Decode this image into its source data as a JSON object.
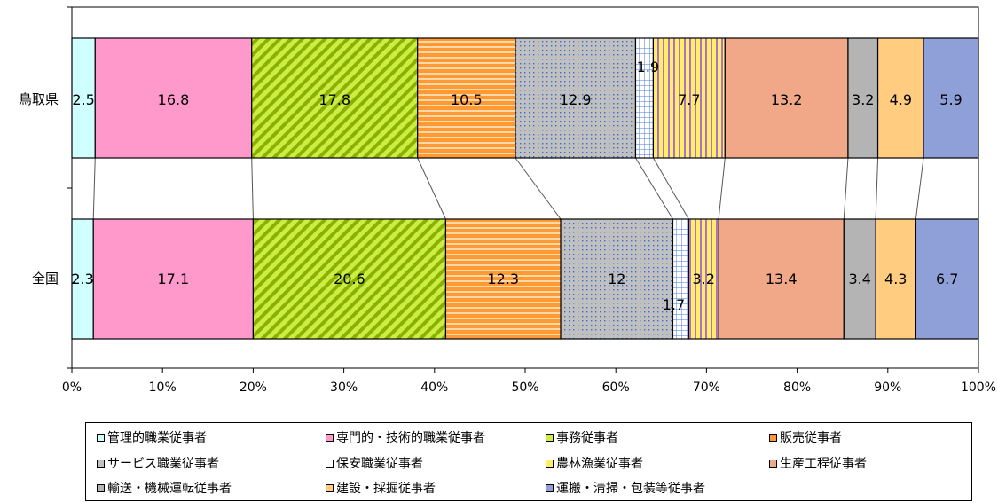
{
  "chart_data": {
    "type": "bar",
    "orientation": "horizontal",
    "stacked": "percent",
    "categories": [
      "鳥取県",
      "全国"
    ],
    "series": [
      {
        "name": "管理的職業従事者",
        "values": [
          2.5,
          2.3
        ],
        "color": "#cfffff",
        "pattern": "solid"
      },
      {
        "name": "専門的・技術的職業従事者",
        "values": [
          16.8,
          17.1
        ],
        "color": "#ff99cc",
        "pattern": "solid"
      },
      {
        "name": "事務従事者",
        "values": [
          17.8,
          20.6
        ],
        "color": "#ccee44",
        "pattern": "diagonal"
      },
      {
        "name": "販売従事者",
        "values": [
          10.5,
          12.3
        ],
        "color": "#ff9933",
        "pattern": "horizontal"
      },
      {
        "name": "サービス職業従事者",
        "values": [
          12.9,
          12
        ],
        "color": "#c0c0c0",
        "pattern": "dots"
      },
      {
        "name": "保安職業従事者",
        "values": [
          1.9,
          1.7
        ],
        "color": "#ffffff",
        "pattern": "grid"
      },
      {
        "name": "農林漁業従事者",
        "values": [
          7.7,
          3.2
        ],
        "color": "#ffee66",
        "pattern": "vertical"
      },
      {
        "name": "生産工程従事者",
        "values": [
          13.2,
          13.4
        ],
        "color": "#f0a888",
        "pattern": "solid"
      },
      {
        "name": "輸送・機械運転従事者",
        "values": [
          3.2,
          3.4
        ],
        "color": "#b4b4b4",
        "pattern": "solid"
      },
      {
        "name": "建設・採掘従事者",
        "values": [
          4.9,
          4.3
        ],
        "color": "#ffcc80",
        "pattern": "solid"
      },
      {
        "name": "運搬・清掃・包装等従事者",
        "values": [
          5.9,
          6.7
        ],
        "color": "#8fa0d8",
        "pattern": "solid"
      }
    ],
    "data_labels": [
      [
        "2.5",
        "16.8",
        "17.8",
        "10.5",
        "12.9",
        "1.9",
        "7.7",
        "13.2",
        "3.2",
        "4.9",
        "5.9"
      ],
      [
        "2.3",
        "17.1",
        "20.6",
        "12.3",
        "12",
        "1.7",
        "3.2",
        "13.4",
        "3.4",
        "4.3",
        "6.7"
      ]
    ],
    "x_ticks": [
      "0%",
      "10%",
      "20%",
      "30%",
      "40%",
      "50%",
      "60%",
      "70%",
      "80%",
      "90%",
      "100%"
    ],
    "xlim": [
      0,
      100
    ],
    "grid": false,
    "series_lines": true,
    "legend_position": "bottom"
  }
}
